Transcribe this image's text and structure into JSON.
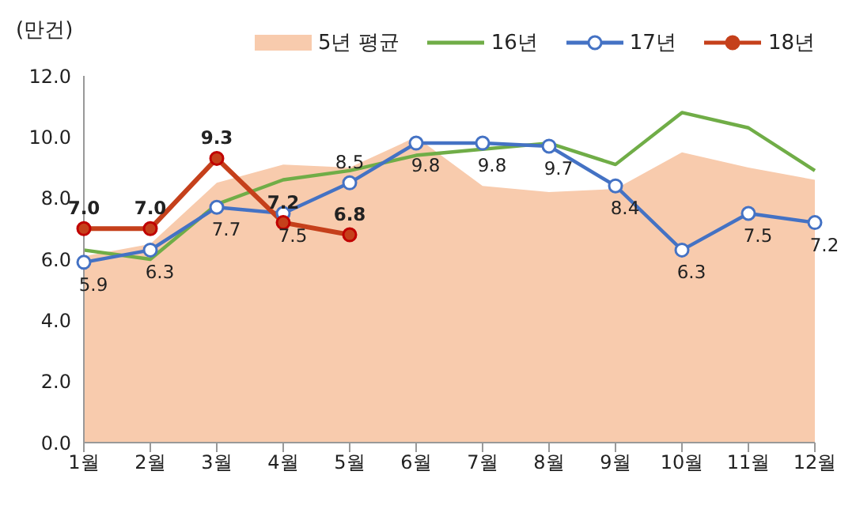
{
  "chart_data": {
    "type": "line",
    "ylabel": "(만건)",
    "categories": [
      "1월",
      "2월",
      "3월",
      "4월",
      "5월",
      "6월",
      "7월",
      "8월",
      "9월",
      "10월",
      "11월",
      "12월"
    ],
    "ylim": [
      0,
      12
    ],
    "yticks": [
      {
        "value": 0,
        "label": "0.0"
      },
      {
        "value": 2,
        "label": "2.0"
      },
      {
        "value": 4,
        "label": "4.0"
      },
      {
        "value": 6,
        "label": "6.0"
      },
      {
        "value": 8,
        "label": "8.0"
      },
      {
        "value": 10,
        "label": "10.0"
      },
      {
        "value": 12,
        "label": "12.0"
      }
    ],
    "grid": false,
    "legend": "top right",
    "series": [
      {
        "name": "5년 평균",
        "type": "area",
        "color": "#f8cbad",
        "marker": "none",
        "values": [
          6.1,
          6.5,
          8.5,
          9.1,
          9.0,
          10.0,
          8.4,
          8.2,
          8.3,
          9.5,
          9.0,
          8.6
        ]
      },
      {
        "name": "16년",
        "color": "#70ad47",
        "marker": "none",
        "values": [
          6.3,
          6.0,
          7.8,
          8.6,
          8.9,
          9.4,
          9.6,
          9.8,
          9.1,
          10.8,
          10.3,
          8.9
        ]
      },
      {
        "name": "17년",
        "color": "#4472c4",
        "marker": "circle",
        "values": [
          5.9,
          6.3,
          7.7,
          7.5,
          8.5,
          9.8,
          9.8,
          9.7,
          8.4,
          6.3,
          7.5,
          7.2
        ],
        "value_labels": [
          "5.9",
          "6.3",
          "7.7",
          "7.5",
          "8.5",
          "9.8",
          "9.8",
          "9.7",
          "8.4",
          "6.3",
          "7.5",
          "7.2"
        ]
      },
      {
        "name": "18년",
        "color": "#c5401b",
        "marker": "circle",
        "values": [
          7.0,
          7.0,
          9.3,
          7.2,
          6.8,
          null,
          null,
          null,
          null,
          null,
          null,
          null
        ],
        "value_labels": [
          "7.0",
          "7.0",
          "9.3",
          "7.2",
          "6.8",
          null,
          null,
          null,
          null,
          null,
          null,
          null
        ]
      }
    ]
  }
}
